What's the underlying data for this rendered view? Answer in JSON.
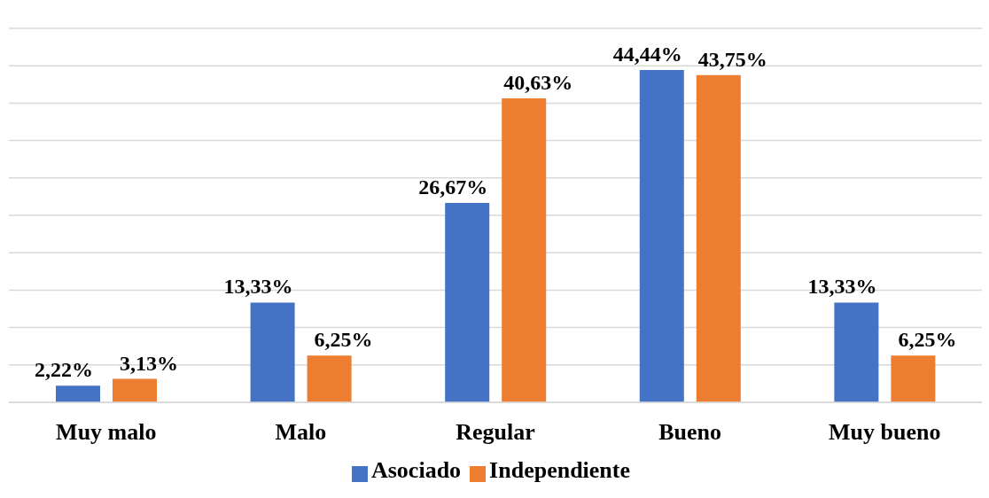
{
  "chart_data": {
    "type": "bar",
    "categories": [
      "Muy malo",
      "Malo",
      "Regular",
      "Bueno",
      "Muy bueno"
    ],
    "series": [
      {
        "name": "Asociado",
        "color": "#4472c4",
        "values": [
          2.22,
          13.33,
          26.67,
          44.44,
          13.33
        ],
        "value_labels": [
          "2,22%",
          "13,33%",
          "26,67%",
          "44,44%",
          "13,33%"
        ]
      },
      {
        "name": "Independiente",
        "color": "#ed7d31",
        "values": [
          3.13,
          6.25,
          40.63,
          43.75,
          6.25
        ],
        "value_labels": [
          "3,13%",
          "6,25%",
          "40,63%",
          "43,75%",
          "6,25%"
        ]
      }
    ],
    "ylim": [
      0,
      50
    ],
    "tick_labels": "x",
    "grid": "y",
    "legend": "bottom"
  }
}
